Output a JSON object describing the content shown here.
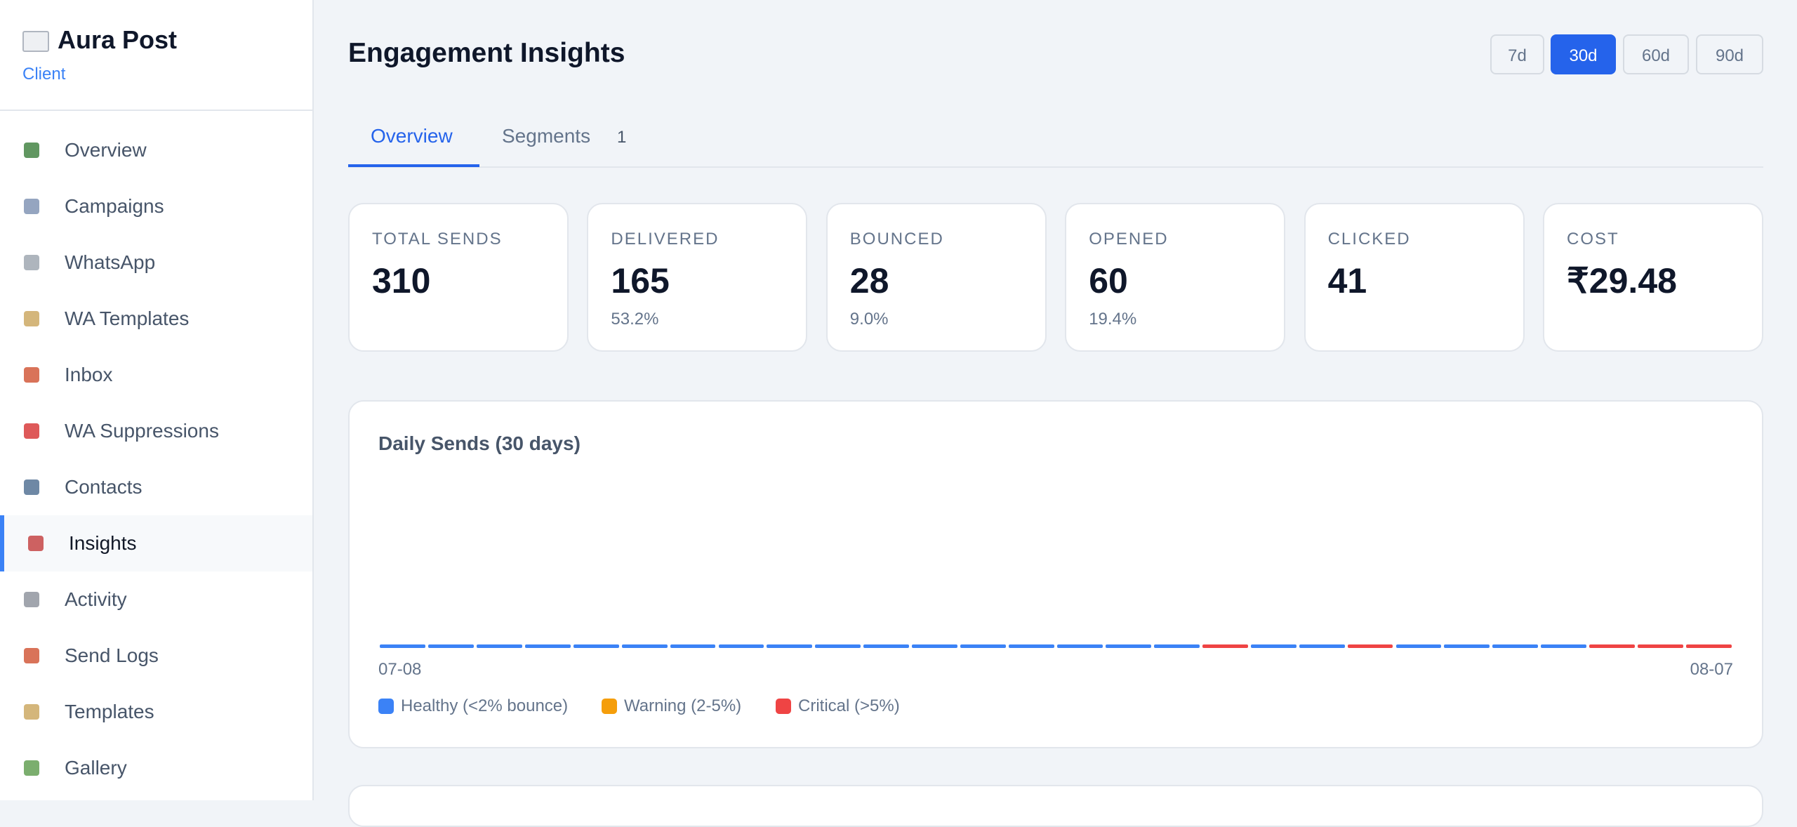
{
  "sidebar": {
    "brand": "Aura Post",
    "role": "Client",
    "nav": [
      "Overview",
      "Campaigns",
      "WhatsApp",
      "WA Templates",
      "Inbox",
      "WA Suppressions",
      "Contacts",
      "Insights",
      "Activity",
      "Send Logs",
      "Templates",
      "Gallery"
    ],
    "active": 7,
    "icon_colors": [
      "#3a7d3a",
      "#7a8fb0",
      "#9aa3ad",
      "#c9a45a",
      "#d0502f",
      "#d62f2f",
      "#4a6a8f",
      "#c23b3b",
      "#8a8f99",
      "#d0502f",
      "#c9a45a",
      "#5a9a4a"
    ]
  },
  "header": {
    "title": "Engagement Insights",
    "ranges": [
      "7d",
      "30d",
      "60d",
      "90d"
    ],
    "active_range": 1
  },
  "tabs": {
    "items": [
      {
        "label": "Overview"
      },
      {
        "label": "Segments",
        "count": "1"
      }
    ],
    "active": 0
  },
  "cards": [
    {
      "label": "TOTAL SENDS",
      "value": "310"
    },
    {
      "label": "DELIVERED",
      "value": "165",
      "sub": "53.2%"
    },
    {
      "label": "BOUNCED",
      "value": "28",
      "sub": "9.0%"
    },
    {
      "label": "OPENED",
      "value": "60",
      "sub": "19.4%"
    },
    {
      "label": "CLICKED",
      "value": "41"
    },
    {
      "label": "COST",
      "value": "₹29.48"
    }
  ],
  "chart": {
    "title": "Daily Sends (30 days)",
    "start_label": "07-08",
    "end_label": "08-07",
    "legend": [
      {
        "label": "Healthy (<2% bounce)",
        "color": "#3b82f6"
      },
      {
        "label": "Warning (2-5%)",
        "color": "#f59e0b"
      },
      {
        "label": "Critical (>5%)",
        "color": "#ef4444"
      }
    ],
    "bar_status": [
      0,
      0,
      0,
      0,
      0,
      0,
      0,
      0,
      0,
      0,
      0,
      0,
      0,
      0,
      0,
      0,
      0,
      2,
      0,
      0,
      2,
      0,
      0,
      0,
      0,
      2,
      2,
      2
    ]
  }
}
